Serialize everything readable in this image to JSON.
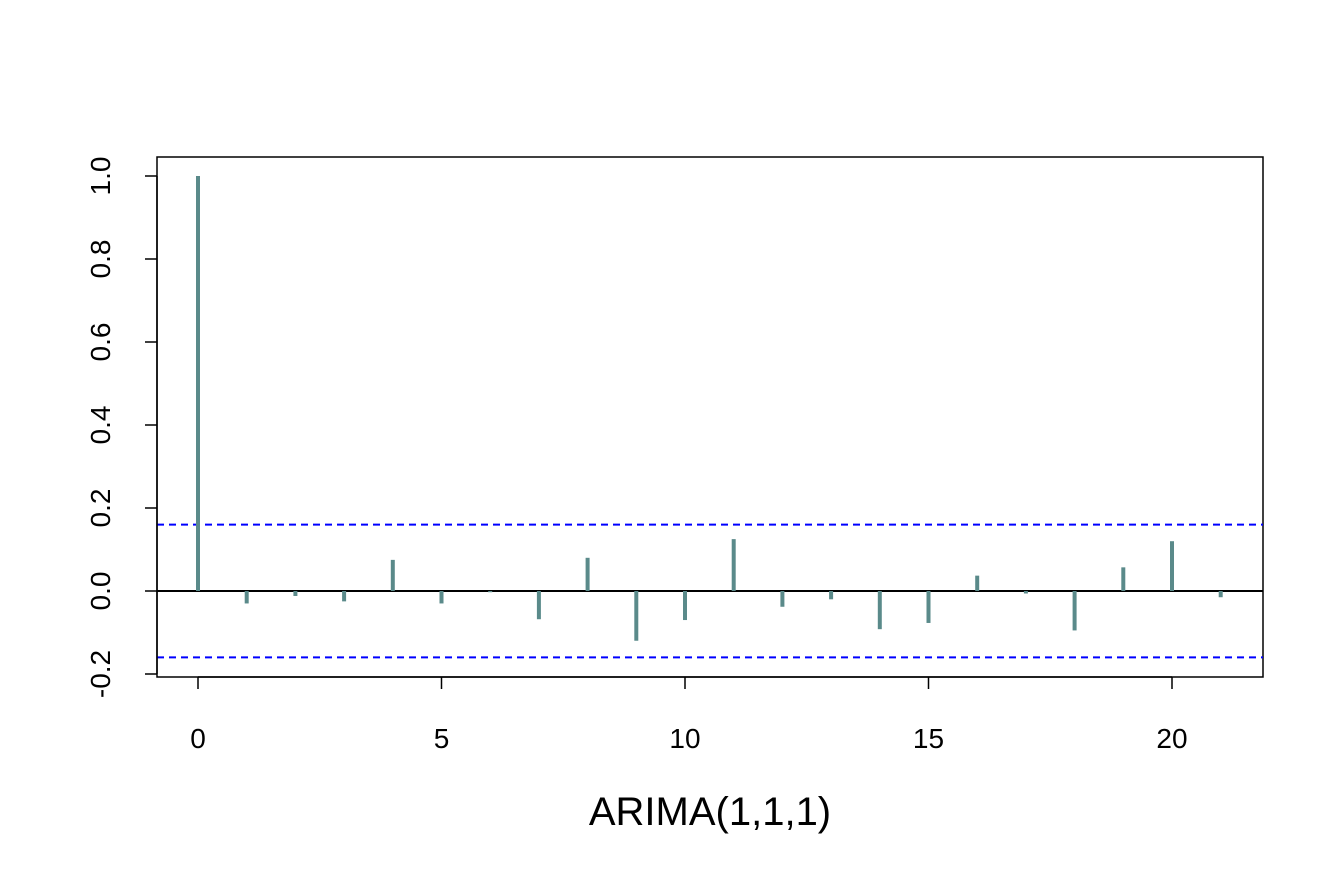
{
  "chart_data": {
    "type": "bar",
    "title": "",
    "xlabel": "ARIMA(1,1,1)",
    "ylabel": "",
    "x": [
      0,
      1,
      2,
      3,
      4,
      5,
      6,
      7,
      8,
      9,
      10,
      11,
      12,
      13,
      14,
      15,
      16,
      17,
      18,
      19,
      20,
      21
    ],
    "values": [
      1.0,
      -0.03,
      -0.012,
      -0.025,
      0.075,
      -0.03,
      -0.003,
      -0.068,
      0.08,
      -0.12,
      -0.07,
      0.125,
      -0.038,
      -0.02,
      -0.092,
      -0.077,
      0.037,
      -0.006,
      -0.095,
      0.057,
      0.12,
      -0.015
    ],
    "xlim": [
      -1,
      21.8
    ],
    "ylim": [
      -0.2,
      1.0
    ],
    "xticks": [
      0,
      5,
      10,
      15,
      20
    ],
    "xtick_labels": [
      "0",
      "5",
      "10",
      "15",
      "20"
    ],
    "yticks": [
      -0.2,
      0.0,
      0.2,
      0.4,
      0.6,
      0.8,
      1.0
    ],
    "ytick_labels": [
      "-0.2",
      "0.0",
      "0.2",
      "0.4",
      "0.6",
      "0.8",
      "1.0"
    ],
    "confidence_bounds": [
      0.16,
      -0.16
    ],
    "grid": false,
    "colors": {
      "bars": "#5a8a8a",
      "bounds": "#0000ff",
      "zero_line": "#000000"
    }
  }
}
